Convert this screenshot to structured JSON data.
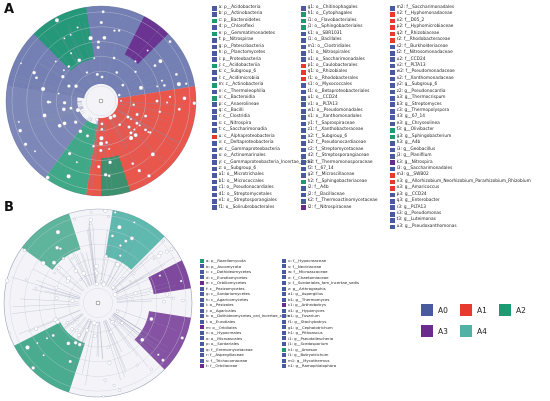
{
  "panels": [
    {
      "label": "A"
    },
    {
      "label": "B"
    }
  ],
  "colors": {
    "A0": "#4a5a9e",
    "A1": "#e63a2e",
    "A2": "#1e9a73",
    "A3": "#6a2a8e",
    "A4": "#4fb2a5"
  },
  "key": [
    {
      "name": "A0",
      "color": "#4a5a9e"
    },
    {
      "name": "A1",
      "color": "#e63a2e"
    },
    {
      "name": "A2",
      "color": "#1e9a73"
    },
    {
      "name": "A3",
      "color": "#6a2a8e"
    },
    {
      "name": "A4",
      "color": "#4fb2a5"
    }
  ],
  "legendA": [
    [
      {
        "t": "a: p__Acidobacteria",
        "c": "A0"
      },
      {
        "t": "b: p__Actinobacteria",
        "c": "A0"
      },
      {
        "t": "c: p__Bacteroidetes",
        "c": "A2"
      },
      {
        "t": "d: p__Chloroflexi",
        "c": "A0"
      },
      {
        "t": "e: p__Gemmatimonadetes",
        "c": "A2"
      },
      {
        "t": "f: p__Nitrospirae",
        "c": "A0"
      },
      {
        "t": "g: p__Patescibacteria",
        "c": "A0"
      },
      {
        "t": "h: p__Planctomycetes",
        "c": "A0"
      },
      {
        "t": "i: p__Proteobacteria",
        "c": "A0"
      },
      {
        "t": "j: c__Acidobacteriia",
        "c": "A2"
      },
      {
        "t": "k: c__Subgroup_6",
        "c": "A0"
      },
      {
        "t": "l: c__Acidimicrobiia",
        "c": "A0"
      },
      {
        "t": "m: c__Actinobacteria",
        "c": "A2"
      },
      {
        "t": "n: c__Thermoleophilia",
        "c": "A0"
      },
      {
        "t": "o: c__Bacteroidia",
        "c": "A2"
      },
      {
        "t": "p: c__Anaerolineae",
        "c": "A0"
      },
      {
        "t": "q: c__Bacilli",
        "c": "A0"
      },
      {
        "t": "r: c__Clostridia",
        "c": "A0"
      },
      {
        "t": "s: c__Nitrospira",
        "c": "A0"
      },
      {
        "t": "t: c__Saccharimonadia",
        "c": "A0"
      },
      {
        "t": "u: c__Alphaproteobacteria",
        "c": "A1"
      },
      {
        "t": "v: c__Deltaproteobacteria",
        "c": "A0"
      },
      {
        "t": "w: c__Gammaproteobacteria",
        "c": "A0"
      },
      {
        "t": "x: o__Actinomarinales",
        "c": "A0"
      },
      {
        "t": "y: c__Gammaproteobacteria_Incertae_Sedis",
        "c": "A0"
      },
      {
        "t": "z: o__Subgroup_6",
        "c": "A0"
      },
      {
        "t": "a1: o__Microtrichales",
        "c": "A0"
      },
      {
        "t": "b1: o__Micrococcales",
        "c": "A0"
      },
      {
        "t": "c1: o__Pseudonocardiales",
        "c": "A0"
      },
      {
        "t": "d1: o__Streptomycetales",
        "c": "A0"
      },
      {
        "t": "e1: o__Streptosporangiales",
        "c": "A0"
      },
      {
        "t": "f1: o__Solirubrobacterales",
        "c": "A0"
      }
    ],
    [
      {
        "t": "g1: o__Chitinophagales",
        "c": "A0"
      },
      {
        "t": "h1: o__Cytophagales",
        "c": "A2"
      },
      {
        "t": "i1: o__Flavobacteriales",
        "c": "A2"
      },
      {
        "t": "j1: o__Sphingobacteriales",
        "c": "A2"
      },
      {
        "t": "k1: o__SBR1031",
        "c": "A0"
      },
      {
        "t": "l1: o__Bacillales",
        "c": "A0"
      },
      {
        "t": "m1: o__Clostridiales",
        "c": "A0"
      },
      {
        "t": "n1: o__Nitrospirales",
        "c": "A0"
      },
      {
        "t": "o1: o__Saccharimonadales",
        "c": "A0"
      },
      {
        "t": "p1: o__Caulobacterales",
        "c": "A1"
      },
      {
        "t": "q1: o__Rhizobiales",
        "c": "A1"
      },
      {
        "t": "r1: o__Rhodobacterales",
        "c": "A1"
      },
      {
        "t": "s1: o__Myxococcales",
        "c": "A0"
      },
      {
        "t": "t1: o__Betaproteobacteriales",
        "c": "A0"
      },
      {
        "t": "u1: o__CCD24",
        "c": "A0"
      },
      {
        "t": "v1: o__PLTA13",
        "c": "A0"
      },
      {
        "t": "w1: o__Pseudomonadales",
        "c": "A0"
      },
      {
        "t": "x1: o__Xanthomonadales",
        "c": "A0"
      },
      {
        "t": "y1: f__Saprospiraceae",
        "c": "A0"
      },
      {
        "t": "z1: f__Xanthobacteraceae",
        "c": "A0"
      },
      {
        "t": "a2: f__Subgroup_6",
        "c": "A0"
      },
      {
        "t": "b2: f__Pseudonocardiaceae",
        "c": "A0"
      },
      {
        "t": "c2: f__Streptomycetaceae",
        "c": "A0"
      },
      {
        "t": "d2: f__Streptosporangiaceae",
        "c": "A0"
      },
      {
        "t": "e2: f__Thermomonosporaceae",
        "c": "A0"
      },
      {
        "t": "f2: f__67_14",
        "c": "A0"
      },
      {
        "t": "g2: f__Microscillaceae",
        "c": "A0"
      },
      {
        "t": "h2: f__Sphingobacteriaceae",
        "c": "A2"
      },
      {
        "t": "i2: f__A4b",
        "c": "A0"
      },
      {
        "t": "j2: f__Bacillaceae",
        "c": "A0"
      },
      {
        "t": "k2: f__Thermoactinomycetaceae",
        "c": "A0"
      },
      {
        "t": "l2: f__Nitrospiraceae",
        "c": "A3"
      }
    ],
    [
      {
        "t": "m2: f__Saccharimonadales",
        "c": "A0"
      },
      {
        "t": "n2: f__Hyphomonadaceae",
        "c": "A1"
      },
      {
        "t": "o2: f__D05_2",
        "c": "A1"
      },
      {
        "t": "p2: f__Hyphomicrobiaceae",
        "c": "A1"
      },
      {
        "t": "q2: f__Rhizobiaceae",
        "c": "A1"
      },
      {
        "t": "r2: f__Rhodobacteraceae",
        "c": "A1"
      },
      {
        "t": "s2: f__Burkholderiaceae",
        "c": "A0"
      },
      {
        "t": "t2: f__Nitrosomonadaceae",
        "c": "A0"
      },
      {
        "t": "u2: f__CCD24",
        "c": "A0"
      },
      {
        "t": "v2: f__PLTA13",
        "c": "A0"
      },
      {
        "t": "w2: f__Pseudomonadaceae",
        "c": "A0"
      },
      {
        "t": "x2: f__Xanthomonadaceae",
        "c": "A0"
      },
      {
        "t": "y2: g__Subgroup_6",
        "c": "A0"
      },
      {
        "t": "z2: g__Pseudonocardia",
        "c": "A0"
      },
      {
        "t": "a3: g__Thermocrispum",
        "c": "A0"
      },
      {
        "t": "b3: g__Streptomyces",
        "c": "A0"
      },
      {
        "t": "c3: g__Thermopolyspora",
        "c": "A0"
      },
      {
        "t": "d3: g__67_14",
        "c": "A0"
      },
      {
        "t": "e3: g__Chryseolinea",
        "c": "A0"
      },
      {
        "t": "f3: g__Olivibacter",
        "c": "A2"
      },
      {
        "t": "g3: g__Sphingobacterium",
        "c": "A2"
      },
      {
        "t": "h3: g__A4b",
        "c": "A0"
      },
      {
        "t": "i3: g__Geobacillus",
        "c": "A0"
      },
      {
        "t": "j3: g__Planifilum",
        "c": "A0"
      },
      {
        "t": "k3: g__Nitrospira",
        "c": "A3"
      },
      {
        "t": "l3: g__Saccharimonadales",
        "c": "A0"
      },
      {
        "t": "m3: g__SWB02",
        "c": "A1"
      },
      {
        "t": "n3: g__Allorhizobium_Neorhizobium_Pararhizobium_Rhizobium",
        "c": "A1"
      },
      {
        "t": "o3: g__Amaricoccus",
        "c": "A1"
      },
      {
        "t": "p3: g__CCD24",
        "c": "A0"
      },
      {
        "t": "q3: g__Enterobacter",
        "c": "A0"
      },
      {
        "t": "r3: g__PLTA13",
        "c": "A0"
      },
      {
        "t": "s3: g__Pseudomonas",
        "c": "A0"
      },
      {
        "t": "t3: g__Luteimonas",
        "c": "A0"
      },
      {
        "t": "u3: g__Pseudoxanthomonas",
        "c": "A0"
      }
    ]
  ],
  "legendB": [
    [
      {
        "t": "a: p__Rozellomycota",
        "c": "A2"
      },
      {
        "t": "b: p__Ascomycota",
        "c": "A0"
      },
      {
        "t": "c: c__Dothideomycetes",
        "c": "A0"
      },
      {
        "t": "d: c__Eurotiomycetes",
        "c": "A0"
      },
      {
        "t": "e: c__Orbiliomycetes",
        "c": "A3"
      },
      {
        "t": "f: c__Pezizomycetes",
        "c": "A0"
      },
      {
        "t": "g: c__Sordariomycetes",
        "c": "A0"
      },
      {
        "t": "h: c__Agaricomycetes",
        "c": "A0"
      },
      {
        "t": "i: o__Pezizales",
        "c": "A0"
      },
      {
        "t": "j: o__Agaricales",
        "c": "A0"
      },
      {
        "t": "k: o__Dothideomycetes_ord_Incertae_sedis",
        "c": "A0"
      },
      {
        "t": "l: o__Eurotiales",
        "c": "A0"
      },
      {
        "t": "m: o__Orbiliales",
        "c": "A3"
      },
      {
        "t": "n: o__Hypocreales",
        "c": "A0"
      },
      {
        "t": "o: o__Microascales",
        "c": "A0"
      },
      {
        "t": "p: o__Sordariales",
        "c": "A0"
      },
      {
        "t": "q: f__Eremomycetaceae",
        "c": "A0"
      },
      {
        "t": "r: f__Aspergillaceae",
        "c": "A0"
      },
      {
        "t": "s: f__Trichocomaceae",
        "c": "A0"
      },
      {
        "t": "t: f__Orbiliaceae",
        "c": "A3"
      }
    ],
    [
      {
        "t": "u: f__Hypocreaceae",
        "c": "A0"
      },
      {
        "t": "v: f__Nectriaceae",
        "c": "A0"
      },
      {
        "t": "w: f__Microascaceae",
        "c": "A0"
      },
      {
        "t": "x: f__Chaetomiaceae",
        "c": "A0"
      },
      {
        "t": "y: f__Sordariales_fam_Incertae_sedis",
        "c": "A0"
      },
      {
        "t": "z: g__Arthrographis",
        "c": "A0"
      },
      {
        "t": "a1: g__Aspergillus",
        "c": "A0"
      },
      {
        "t": "b1: g__Thermomyces",
        "c": "A0"
      },
      {
        "t": "c1: g__Arthrobotrys",
        "c": "A3"
      },
      {
        "t": "d1: g__Hypomyces",
        "c": "A0"
      },
      {
        "t": "e1: g__Fusarium",
        "c": "A0"
      },
      {
        "t": "f1: g__Stachybotrys",
        "c": "A0"
      },
      {
        "t": "g1: g__Cephalotrichum",
        "c": "A0"
      },
      {
        "t": "h1: g__Pithoascus",
        "c": "A0"
      },
      {
        "t": "i1: g__Pseudallescheria",
        "c": "A0"
      },
      {
        "t": "j1: g__Scedosporium",
        "c": "A0"
      },
      {
        "t": "k1: g__Ameson",
        "c": "A2"
      },
      {
        "t": "l1: g__Botryotrichum",
        "c": "A0"
      },
      {
        "t": "m1: g__Mycothermus",
        "c": "A0"
      },
      {
        "t": "n1: g__Ramophialophora",
        "c": "A0"
      }
    ]
  ]
}
